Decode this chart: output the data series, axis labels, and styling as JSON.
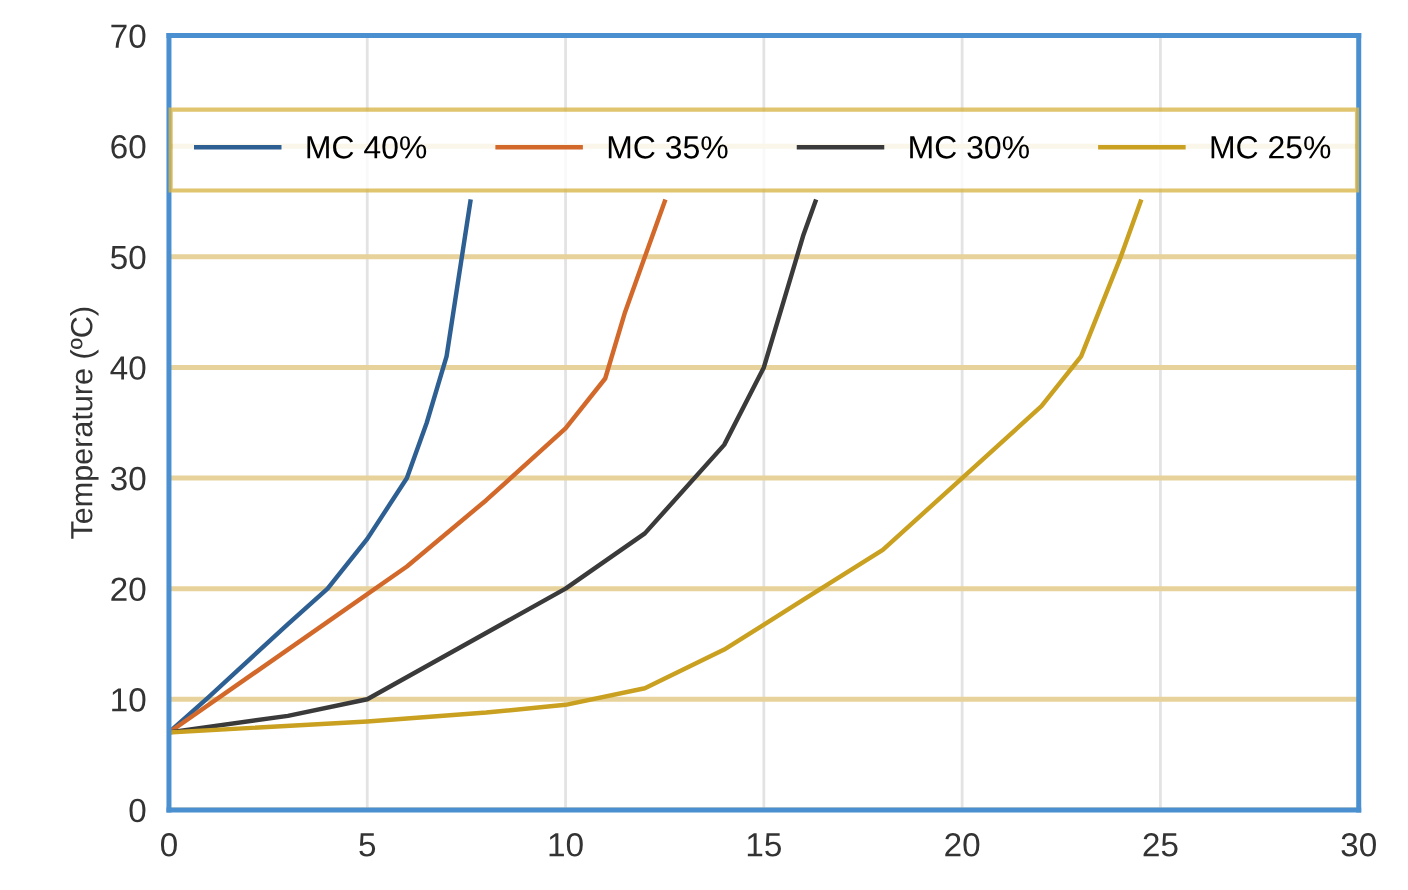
{
  "chart_data": {
    "type": "line",
    "ylabel": "Temperature (ºC)",
    "xlim": [
      0,
      30
    ],
    "ylim": [
      0,
      70
    ],
    "xticks": [
      0,
      5,
      10,
      15,
      20,
      25,
      30
    ],
    "yticks": [
      0,
      10,
      20,
      30,
      40,
      50,
      60,
      70
    ],
    "grid": true,
    "legend": "top",
    "marker": "none",
    "line_style": "solid",
    "series": [
      {
        "name": "MC 40%",
        "color": "#2e5f92",
        "x": [
          0,
          1,
          2,
          3,
          4,
          5,
          6,
          6.5,
          7,
          7.3,
          7.6
        ],
        "values": [
          7,
          10.2,
          13.5,
          16.8,
          20,
          24.5,
          30,
          35,
          41,
          48,
          55
        ]
      },
      {
        "name": "MC 35%",
        "color": "#d2692a",
        "x": [
          0,
          2,
          4,
          6,
          8,
          10,
          11,
          11.5,
          12,
          12.5
        ],
        "values": [
          7,
          12,
          17,
          22,
          28,
          34.5,
          39,
          45,
          50,
          55
        ]
      },
      {
        "name": "MC 30%",
        "color": "#3a3a3a",
        "x": [
          0,
          3,
          5,
          7,
          10,
          12,
          14,
          15,
          15.5,
          16,
          16.3
        ],
        "values": [
          7,
          8.5,
          10,
          14,
          20,
          25,
          33,
          40,
          46,
          52,
          55
        ]
      },
      {
        "name": "MC 25%",
        "color": "#c9a020",
        "x": [
          0,
          5,
          8,
          10,
          12,
          14,
          16,
          18,
          20,
          22,
          23,
          24,
          24.5
        ],
        "values": [
          7,
          8,
          8.8,
          9.5,
          11,
          14.5,
          19,
          23.5,
          30,
          36.5,
          41,
          50,
          55
        ]
      }
    ]
  }
}
